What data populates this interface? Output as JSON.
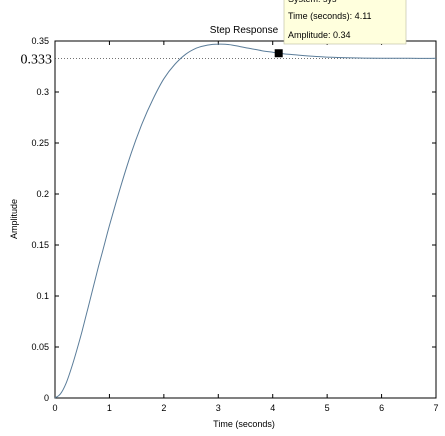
{
  "chart_data": {
    "type": "line",
    "title": "Step Response",
    "xlabel": "Time (seconds)",
    "ylabel": "Amplitude",
    "xlim": [
      0,
      7
    ],
    "ylim": [
      0,
      0.35
    ],
    "xticks": [
      "0",
      "1",
      "2",
      "3",
      "4",
      "5",
      "6",
      "7"
    ],
    "yticks": [
      "0",
      "0.05",
      "0.1",
      "0.15",
      "0.2",
      "0.25",
      "0.3",
      "0.35"
    ],
    "reference_line": {
      "value": 0.333,
      "label": "0.333",
      "style": "dotted"
    },
    "series": [
      {
        "color": "#5b7d9a",
        "x": [
          0,
          0.1,
          0.2,
          0.3,
          0.4,
          0.5,
          0.6,
          0.7,
          0.8,
          0.9,
          1.0,
          1.2,
          1.4,
          1.6,
          1.8,
          2.0,
          2.2,
          2.4,
          2.6,
          2.8,
          3.0,
          3.2,
          3.4,
          3.6,
          3.8,
          4.0,
          4.11,
          4.4,
          4.8,
          5.2,
          5.6,
          6.0,
          6.5,
          7.0
        ],
        "y": [
          0,
          0.004,
          0.014,
          0.029,
          0.047,
          0.066,
          0.087,
          0.108,
          0.129,
          0.149,
          0.169,
          0.206,
          0.24,
          0.269,
          0.293,
          0.313,
          0.327,
          0.337,
          0.343,
          0.346,
          0.347,
          0.3465,
          0.3445,
          0.3425,
          0.3405,
          0.339,
          0.338,
          0.3365,
          0.3348,
          0.3338,
          0.3333,
          0.3331,
          0.333,
          0.333
        ]
      }
    ],
    "datatip": {
      "lines": [
        "System: sys",
        "Time (seconds): 4.11",
        "Amplitude: 0.34"
      ],
      "x": 4.11,
      "y": 0.338,
      "background": "#ffffdd"
    },
    "grid": false,
    "legend": "none"
  }
}
